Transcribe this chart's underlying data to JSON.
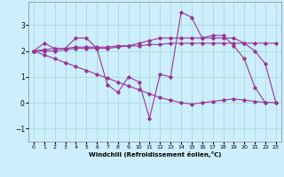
{
  "background_color": "#cceeff",
  "grid_color": "#aaddcc",
  "line_color": "#993399",
  "x_label": "Windchill (Refroidissement éolien,°C)",
  "xlim": [
    -0.5,
    23.5
  ],
  "ylim": [
    -1.5,
    3.9
  ],
  "yticks": [
    -1,
    0,
    1,
    2,
    3
  ],
  "xticks": [
    0,
    1,
    2,
    3,
    4,
    5,
    6,
    7,
    8,
    9,
    10,
    11,
    12,
    13,
    14,
    15,
    16,
    17,
    18,
    19,
    20,
    21,
    22,
    23
  ],
  "series1": [
    2.0,
    2.3,
    2.1,
    2.1,
    2.5,
    2.5,
    2.1,
    0.7,
    0.4,
    1.0,
    0.8,
    -0.6,
    1.1,
    1.0,
    3.5,
    3.3,
    2.5,
    2.6,
    2.6,
    2.2,
    1.7,
    0.6,
    0.0,
    null
  ],
  "series2": [
    2.0,
    2.05,
    2.1,
    2.1,
    2.15,
    2.15,
    2.15,
    2.15,
    2.2,
    2.2,
    2.2,
    2.25,
    2.25,
    2.3,
    2.3,
    2.3,
    2.3,
    2.3,
    2.3,
    2.3,
    2.3,
    2.3,
    2.3,
    2.3
  ],
  "series3": [
    2.0,
    2.0,
    2.0,
    2.05,
    2.1,
    2.1,
    2.1,
    2.1,
    2.15,
    2.2,
    2.3,
    2.4,
    2.5,
    2.5,
    2.5,
    2.5,
    2.5,
    2.5,
    2.5,
    2.5,
    2.3,
    2.0,
    1.5,
    0.0
  ],
  "series4": [
    2.0,
    1.85,
    1.7,
    1.55,
    1.4,
    1.25,
    1.1,
    0.95,
    0.8,
    0.65,
    0.5,
    0.35,
    0.2,
    0.1,
    0.0,
    -0.05,
    -0.0,
    0.05,
    0.1,
    0.15,
    0.1,
    0.05,
    0.02,
    0.0
  ]
}
